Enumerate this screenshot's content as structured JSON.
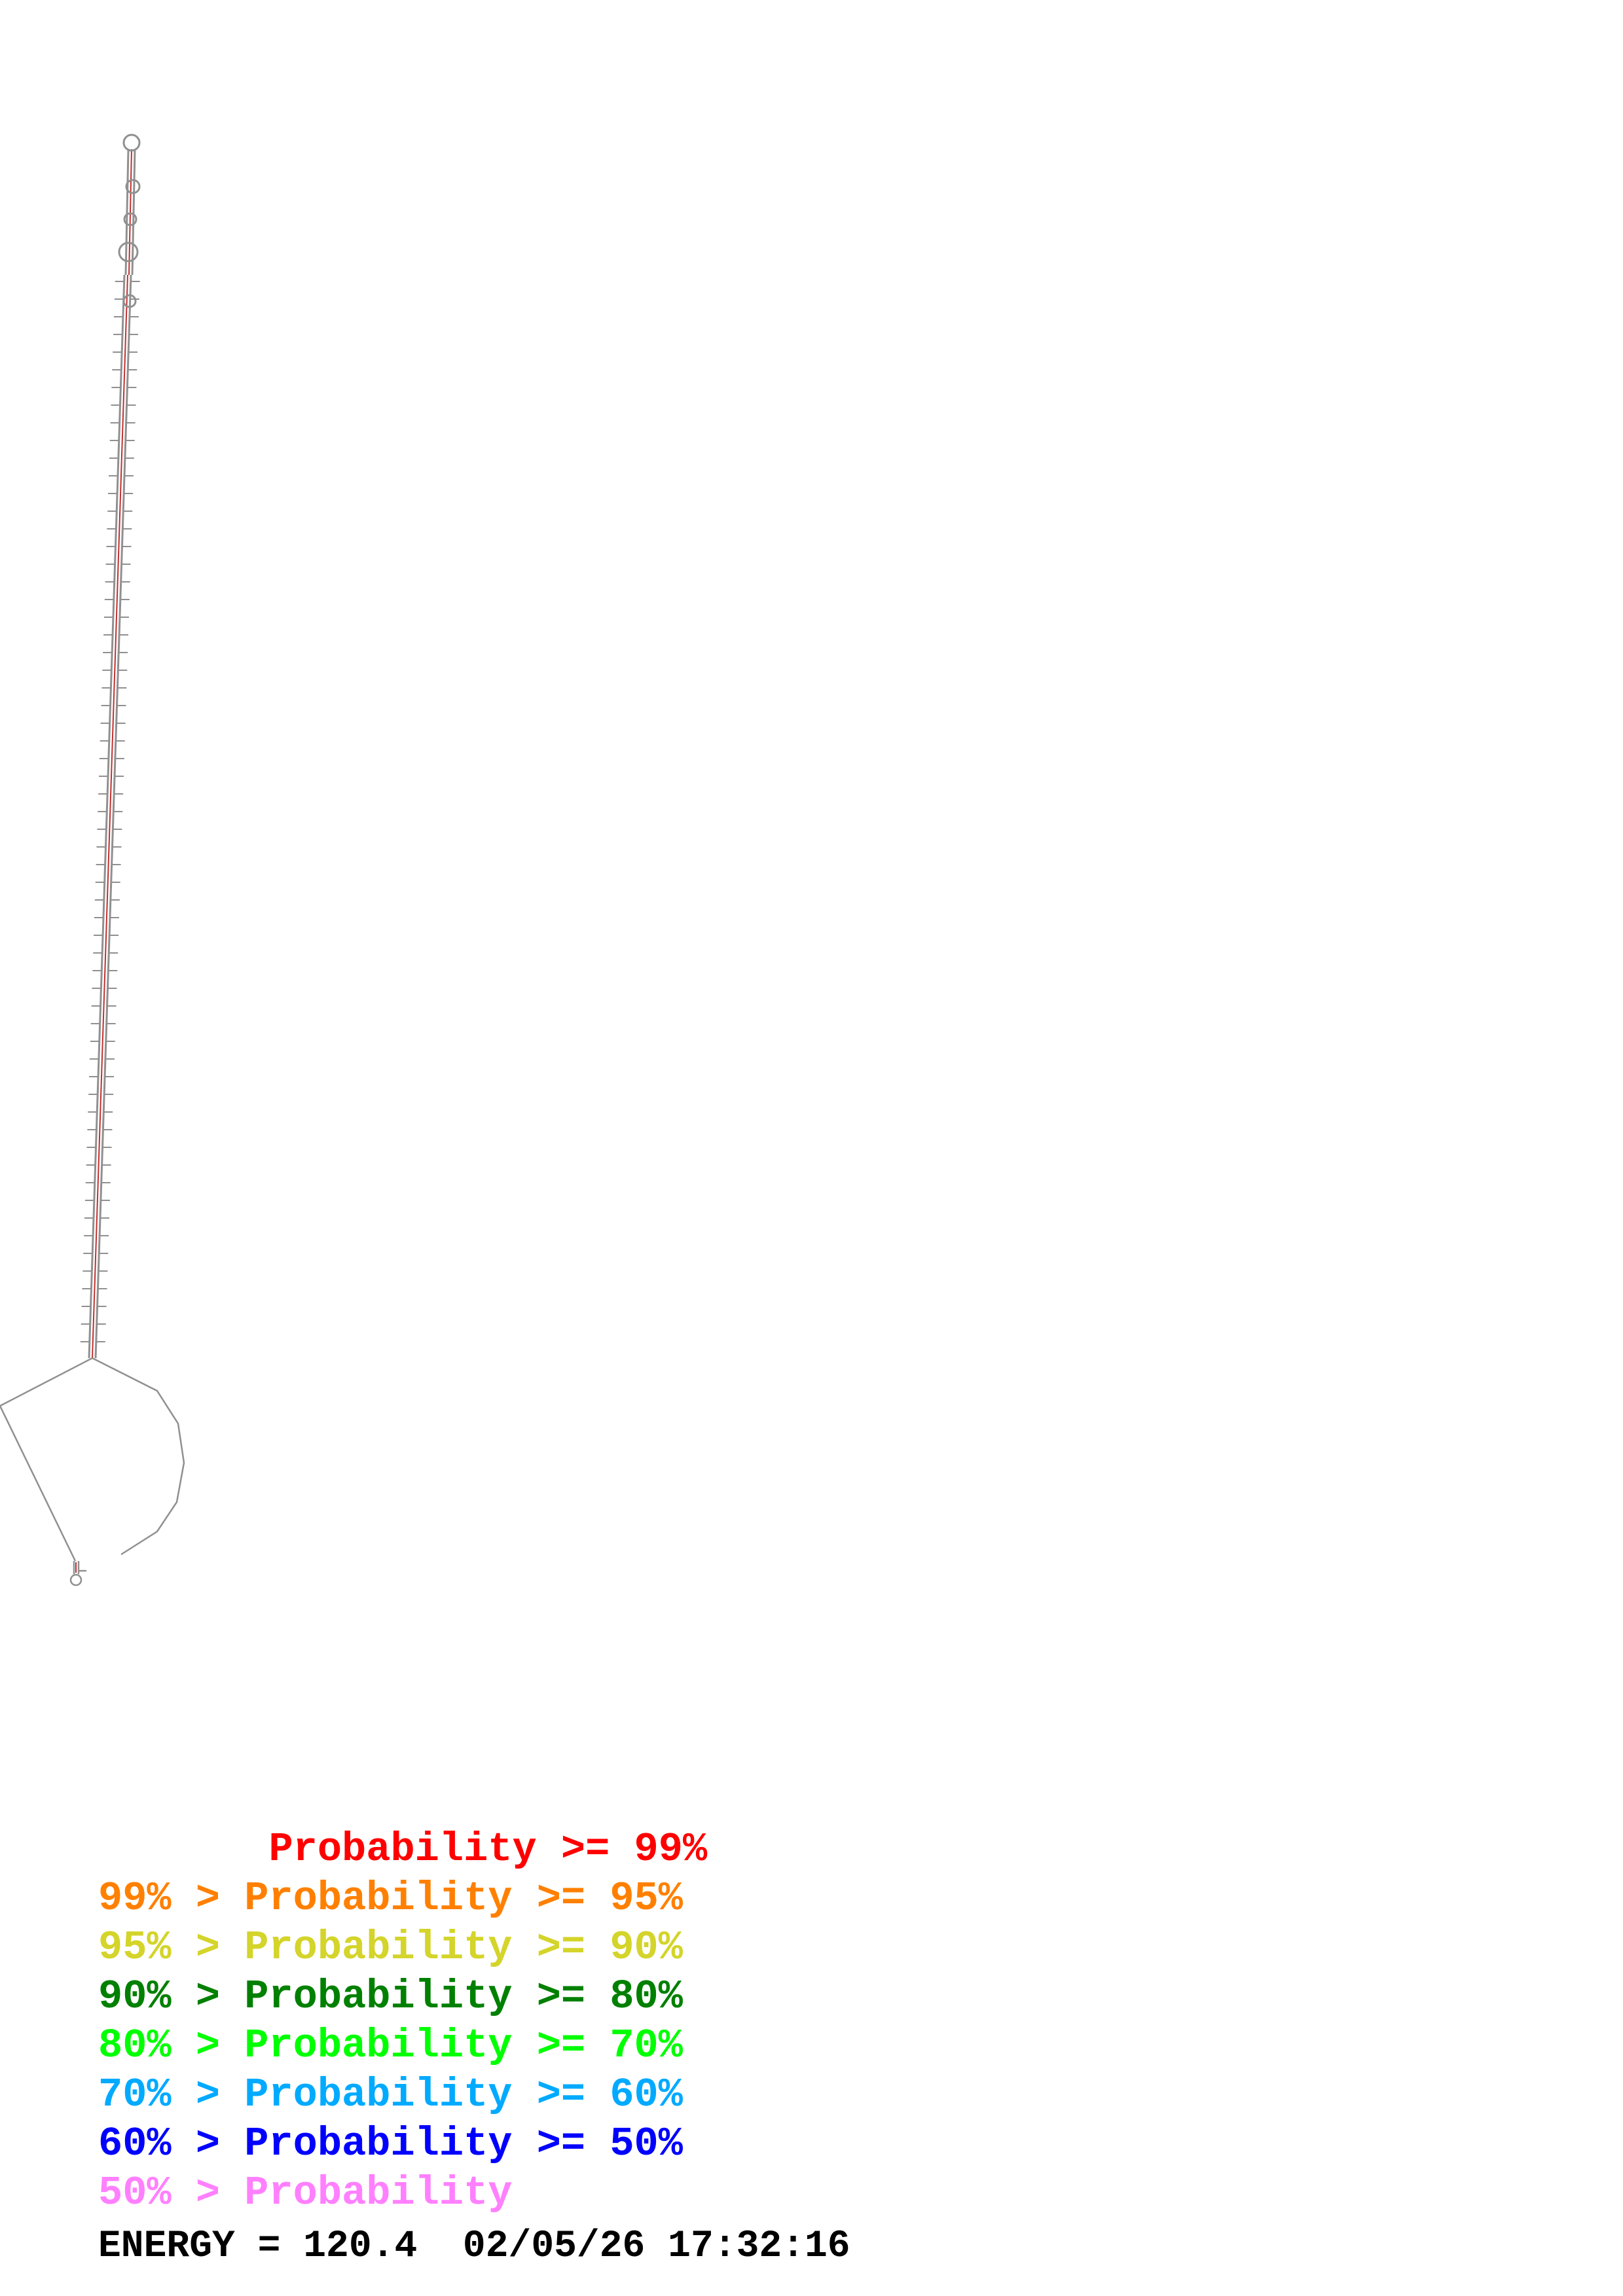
{
  "legend": {
    "rows": [
      {
        "text": "       Probability >= 99%",
        "color": "#ff0000"
      },
      {
        "text": "99% > Probability >= 95%",
        "color": "#ff8000"
      },
      {
        "text": "95% > Probability >= 90%",
        "color": "#d4d42a"
      },
      {
        "text": "90% > Probability >= 80%",
        "color": "#008000"
      },
      {
        "text": "80% > Probability >= 70%",
        "color": "#00ff00"
      },
      {
        "text": "70% > Probability >= 60%",
        "color": "#00aaff"
      },
      {
        "text": "60% > Probability >= 50%",
        "color": "#0000ff"
      },
      {
        "text": "50% > Probability",
        "color": "#ff80ff"
      }
    ]
  },
  "footer": {
    "energy_label": "ENERGY = 120.4",
    "datetime": "02/05/26 17:32:16"
  },
  "colors": {
    "backbone": "#909090",
    "pair_line": "#ff0000"
  }
}
